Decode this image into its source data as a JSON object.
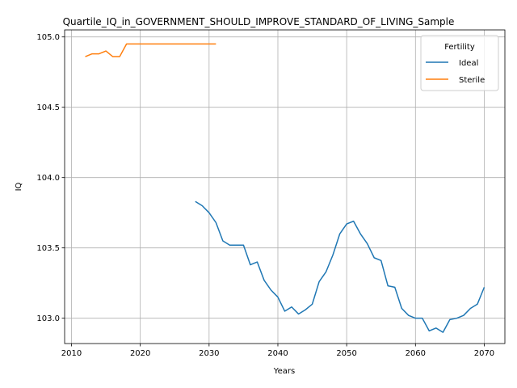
{
  "chart_data": {
    "type": "line",
    "title": "Quartile_IQ_in_GOVERNMENT_SHOULD_IMPROVE_STANDARD_OF_LIVING_Sample",
    "xlabel": "Years",
    "ylabel": "IQ",
    "xlim": [
      2009,
      2073
    ],
    "ylim": [
      102.82,
      105.05
    ],
    "xticks": [
      2010,
      2020,
      2030,
      2040,
      2050,
      2060,
      2070
    ],
    "yticks": [
      103.0,
      103.5,
      104.0,
      104.5,
      105.0
    ],
    "xtick_labels": [
      "2010",
      "2020",
      "2030",
      "2040",
      "2050",
      "2060",
      "2070"
    ],
    "ytick_labels": [
      "103.0",
      "103.5",
      "104.0",
      "104.5",
      "105.0"
    ],
    "grid": true,
    "legend": {
      "title": "Fertility",
      "placement": "top-right"
    },
    "series": [
      {
        "name": "Ideal",
        "color": "#1f77b4",
        "x": [
          2028,
          2029,
          2030,
          2031,
          2032,
          2033,
          2034,
          2035,
          2036,
          2037,
          2038,
          2039,
          2040,
          2041,
          2042,
          2043,
          2044,
          2045,
          2046,
          2047,
          2048,
          2049,
          2050,
          2051,
          2052,
          2053,
          2054,
          2055,
          2056,
          2057,
          2058,
          2059,
          2060,
          2061,
          2062,
          2063,
          2064,
          2065,
          2066,
          2067,
          2068,
          2069,
          2070
        ],
        "y": [
          103.83,
          103.8,
          103.75,
          103.68,
          103.55,
          103.52,
          103.52,
          103.52,
          103.38,
          103.4,
          103.27,
          103.2,
          103.15,
          103.05,
          103.08,
          103.03,
          103.06,
          103.1,
          103.26,
          103.33,
          103.45,
          103.6,
          103.67,
          103.69,
          103.6,
          103.53,
          103.43,
          103.41,
          103.23,
          103.22,
          103.07,
          103.02,
          103.0,
          103.0,
          102.91,
          102.93,
          102.9,
          102.99,
          103.0,
          103.02,
          103.07,
          103.1,
          103.22
        ]
      },
      {
        "name": "Sterile",
        "color": "#ff7f0e",
        "x": [
          2012,
          2013,
          2014,
          2015,
          2016,
          2017,
          2018,
          2019,
          2020,
          2021,
          2022,
          2023,
          2024,
          2025,
          2026,
          2027,
          2028,
          2029,
          2030,
          2031
        ],
        "y": [
          104.86,
          104.88,
          104.88,
          104.9,
          104.86,
          104.86,
          104.95,
          104.95,
          104.95,
          104.95,
          104.95,
          104.95,
          104.95,
          104.95,
          104.95,
          104.95,
          104.95,
          104.95,
          104.95,
          104.95
        ]
      }
    ]
  }
}
